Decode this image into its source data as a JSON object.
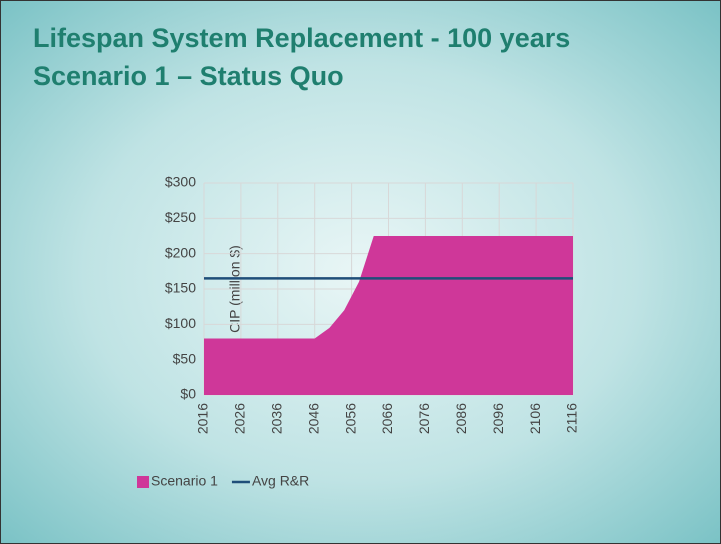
{
  "chart_data": {
    "type": "area",
    "title": [
      "Lifespan System Replacement - 100 years",
      "Scenario 1 – Status Quo"
    ],
    "y_label": "CIP (million $)",
    "xlim": [
      2016,
      2116
    ],
    "xticks": [
      2016,
      2026,
      2036,
      2046,
      2056,
      2066,
      2076,
      2086,
      2096,
      2106,
      2116
    ],
    "ylim": [
      0,
      300
    ],
    "yticks": [
      {
        "value": 0,
        "label": "$0"
      },
      {
        "value": 50,
        "label": "$50"
      },
      {
        "value": 100,
        "label": "$100"
      },
      {
        "value": 150,
        "label": "$150"
      },
      {
        "value": 200,
        "label": "$200"
      },
      {
        "value": 250,
        "label": "$250"
      },
      {
        "value": 300,
        "label": "$300"
      }
    ],
    "grid": true,
    "legend": "bottom",
    "series": [
      {
        "name": "Scenario 1",
        "type": "area",
        "color": "#cf3799",
        "x": [
          2016,
          2046,
          2050,
          2054,
          2058,
          2062,
          2116
        ],
        "values": [
          80,
          80,
          95,
          120,
          160,
          225,
          225
        ]
      },
      {
        "name": "Avg R&R",
        "type": "line",
        "color": "#1f4e79",
        "x": [
          2016,
          2116
        ],
        "values": [
          165,
          165
        ]
      }
    ]
  }
}
